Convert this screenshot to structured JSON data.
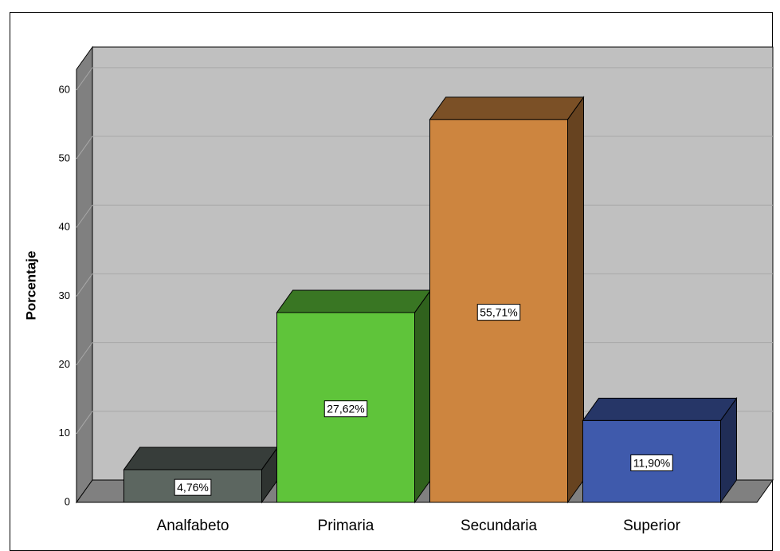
{
  "chart_data": {
    "type": "bar3d",
    "y_label": "Porcentaje",
    "categories": [
      "Analfabeto",
      "Primaria",
      "Secundaria",
      "Superior"
    ],
    "values": [
      4.76,
      27.62,
      55.71,
      11.9
    ],
    "value_labels": [
      "4,76%",
      "27,62%",
      "55,71%",
      "11,90%"
    ],
    "colors": [
      "#5c6660",
      "#5fc43a",
      "#cd853f",
      "#3f5aac"
    ],
    "ylim": [
      0,
      63
    ],
    "yticks": [
      0,
      10,
      20,
      30,
      40,
      50,
      60
    ],
    "grid": true
  }
}
